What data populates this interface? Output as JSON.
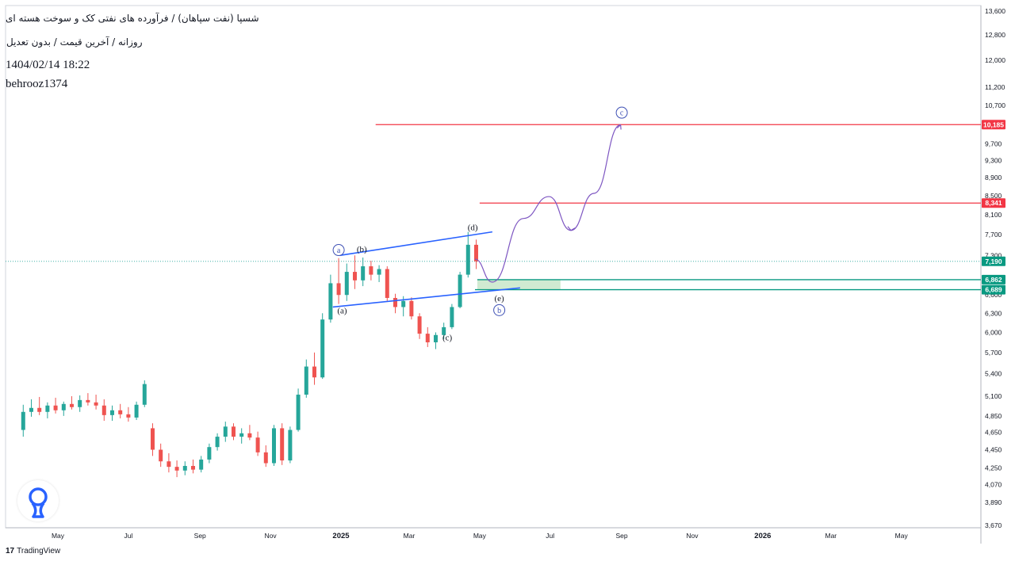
{
  "header": {
    "title": "شسپا (نفت سپاهان) / فرآورده های نفتی کک و سوخت هسته ای",
    "subtitle": "روزانه / آخرین قیمت / بدون تعدیل",
    "date": "1404/02/14 18:22",
    "author": "behrooz1374"
  },
  "footer": {
    "brand": "TradingView",
    "brand_mark": "17"
  },
  "colors": {
    "up": "#26a69a",
    "down": "#ef5350",
    "channel": "#2962ff",
    "resistance": "#f23645",
    "support": "#089981",
    "projection": "#7e57c2",
    "zone": "#c8e6c9",
    "brand_logo": "#2962ff"
  },
  "icons": {
    "brand_logo": "pin-logo-icon",
    "tradingview": "tradingview-logo-icon"
  },
  "chart_data": {
    "type": "candlestick",
    "ylim": [
      3670,
      13600
    ],
    "yscale": "log",
    "price_ticks": [
      "3,670",
      "3,890",
      "4,070",
      "4,250",
      "4,450",
      "4,650",
      "4,850",
      "5,100",
      "5,400",
      "5,700",
      "6,000",
      "6,300",
      "6,600",
      "7,300",
      "7,700",
      "8,100",
      "8,500",
      "8,900",
      "9,300",
      "9,700",
      "10,700",
      "11,200",
      "12,000",
      "12,800",
      "13,600"
    ],
    "time_ticks": [
      "May",
      "Jul",
      "Sep",
      "Nov",
      "2025",
      "Mar",
      "May",
      "Jul",
      "Sep",
      "Nov",
      "2026",
      "Mar",
      "May"
    ],
    "time_ticks_bold": [
      "2025",
      "2026"
    ],
    "last_price": 7190,
    "last_price_label": "7,190",
    "horizontal_levels": [
      {
        "price": 10185,
        "label": "10,185",
        "role": "resistance"
      },
      {
        "price": 8341,
        "label": "8,341",
        "role": "resistance"
      },
      {
        "price": 6862,
        "label": "6,862",
        "role": "support"
      },
      {
        "price": 6689,
        "label": "6,689",
        "role": "support"
      }
    ],
    "wave_labels": [
      {
        "text": "a",
        "circled": true,
        "date": "2024-12-30",
        "price": 7400
      },
      {
        "text": "(b)",
        "circled": false,
        "date": "2025-01-19",
        "price": 7420
      },
      {
        "text": "(a)",
        "circled": false,
        "date": "2025-01-02",
        "price": 6350
      },
      {
        "text": "(c)",
        "circled": false,
        "date": "2025-04-03",
        "price": 5930
      },
      {
        "text": "(d)",
        "circled": false,
        "date": "2025-04-25",
        "price": 7850
      },
      {
        "text": "(e)",
        "circled": false,
        "date": "2025-05-18",
        "price": 6550
      },
      {
        "text": "b",
        "circled": true,
        "date": "2025-05-18",
        "price": 6350
      },
      {
        "text": "c",
        "circled": true,
        "date": "2025-09-01",
        "price": 10500
      }
    ],
    "candles": [
      {
        "date": "2024-04-01",
        "open": 4680,
        "high": 4990,
        "low": 4600,
        "close": 4900
      },
      {
        "date": "2024-04-08",
        "open": 4900,
        "high": 5060,
        "low": 4840,
        "close": 4950
      },
      {
        "date": "2024-04-15",
        "open": 4950,
        "high": 5090,
        "low": 4860,
        "close": 4900
      },
      {
        "date": "2024-04-22",
        "open": 4900,
        "high": 5020,
        "low": 4820,
        "close": 4980
      },
      {
        "date": "2024-04-29",
        "open": 4980,
        "high": 5080,
        "low": 4880,
        "close": 4920
      },
      {
        "date": "2024-05-06",
        "open": 4920,
        "high": 5030,
        "low": 4850,
        "close": 5000
      },
      {
        "date": "2024-05-13",
        "open": 5000,
        "high": 5100,
        "low": 4930,
        "close": 4960
      },
      {
        "date": "2024-05-20",
        "open": 4960,
        "high": 5110,
        "low": 4900,
        "close": 5050
      },
      {
        "date": "2024-05-27",
        "open": 5050,
        "high": 5140,
        "low": 4980,
        "close": 5020
      },
      {
        "date": "2024-06-03",
        "open": 5020,
        "high": 5120,
        "low": 4930,
        "close": 4980
      },
      {
        "date": "2024-06-10",
        "open": 4980,
        "high": 5060,
        "low": 4790,
        "close": 4860
      },
      {
        "date": "2024-06-17",
        "open": 4860,
        "high": 4980,
        "low": 4790,
        "close": 4920
      },
      {
        "date": "2024-06-24",
        "open": 4920,
        "high": 5000,
        "low": 4820,
        "close": 4870
      },
      {
        "date": "2024-07-01",
        "open": 4870,
        "high": 4960,
        "low": 4780,
        "close": 4830
      },
      {
        "date": "2024-07-08",
        "open": 4830,
        "high": 5030,
        "low": 4800,
        "close": 4990
      },
      {
        "date": "2024-07-15",
        "open": 4990,
        "high": 5310,
        "low": 4960,
        "close": 5260
      },
      {
        "date": "2024-07-22",
        "open": 4700,
        "high": 4760,
        "low": 4380,
        "close": 4450
      },
      {
        "date": "2024-07-29",
        "open": 4450,
        "high": 4520,
        "low": 4260,
        "close": 4320
      },
      {
        "date": "2024-08-05",
        "open": 4320,
        "high": 4410,
        "low": 4200,
        "close": 4260
      },
      {
        "date": "2024-08-12",
        "open": 4260,
        "high": 4330,
        "low": 4150,
        "close": 4220
      },
      {
        "date": "2024-08-19",
        "open": 4220,
        "high": 4320,
        "low": 4170,
        "close": 4270
      },
      {
        "date": "2024-08-26",
        "open": 4270,
        "high": 4340,
        "low": 4190,
        "close": 4230
      },
      {
        "date": "2024-09-02",
        "open": 4230,
        "high": 4380,
        "low": 4200,
        "close": 4340
      },
      {
        "date": "2024-09-09",
        "open": 4340,
        "high": 4520,
        "low": 4300,
        "close": 4480
      },
      {
        "date": "2024-09-16",
        "open": 4480,
        "high": 4640,
        "low": 4440,
        "close": 4600
      },
      {
        "date": "2024-09-23",
        "open": 4600,
        "high": 4780,
        "low": 4540,
        "close": 4720
      },
      {
        "date": "2024-09-30",
        "open": 4720,
        "high": 4760,
        "low": 4560,
        "close": 4600
      },
      {
        "date": "2024-10-07",
        "open": 4600,
        "high": 4700,
        "low": 4520,
        "close": 4640
      },
      {
        "date": "2024-10-14",
        "open": 4640,
        "high": 4740,
        "low": 4560,
        "close": 4590
      },
      {
        "date": "2024-10-21",
        "open": 4590,
        "high": 4660,
        "low": 4380,
        "close": 4420
      },
      {
        "date": "2024-10-28",
        "open": 4420,
        "high": 4500,
        "low": 4260,
        "close": 4300
      },
      {
        "date": "2024-11-04",
        "open": 4300,
        "high": 4740,
        "low": 4270,
        "close": 4700
      },
      {
        "date": "2024-11-11",
        "open": 4700,
        "high": 4760,
        "low": 4280,
        "close": 4330
      },
      {
        "date": "2024-11-18",
        "open": 4330,
        "high": 4720,
        "low": 4300,
        "close": 4680
      },
      {
        "date": "2024-11-25",
        "open": 4680,
        "high": 5200,
        "low": 4660,
        "close": 5120
      },
      {
        "date": "2024-12-02",
        "open": 5120,
        "high": 5600,
        "low": 5080,
        "close": 5500
      },
      {
        "date": "2024-12-09",
        "open": 5500,
        "high": 5700,
        "low": 5250,
        "close": 5350
      },
      {
        "date": "2024-12-16",
        "open": 5350,
        "high": 6300,
        "low": 5330,
        "close": 6200
      },
      {
        "date": "2024-12-23",
        "open": 6200,
        "high": 6950,
        "low": 6150,
        "close": 6800
      },
      {
        "date": "2024-12-30",
        "open": 6800,
        "high": 7250,
        "low": 6450,
        "close": 6600
      },
      {
        "date": "2025-01-06",
        "open": 6600,
        "high": 7150,
        "low": 6500,
        "close": 7000
      },
      {
        "date": "2025-01-13",
        "open": 7000,
        "high": 7300,
        "low": 6700,
        "close": 6850
      },
      {
        "date": "2025-01-20",
        "open": 6850,
        "high": 7260,
        "low": 6750,
        "close": 7100
      },
      {
        "date": "2025-01-27",
        "open": 7100,
        "high": 7200,
        "low": 6850,
        "close": 6950
      },
      {
        "date": "2025-02-03",
        "open": 6950,
        "high": 7120,
        "low": 6820,
        "close": 7050
      },
      {
        "date": "2025-02-10",
        "open": 7050,
        "high": 7100,
        "low": 6500,
        "close": 6550
      },
      {
        "date": "2025-02-17",
        "open": 6550,
        "high": 6620,
        "low": 6300,
        "close": 6400
      },
      {
        "date": "2025-02-24",
        "open": 6400,
        "high": 6580,
        "low": 6250,
        "close": 6500
      },
      {
        "date": "2025-03-03",
        "open": 6500,
        "high": 6560,
        "low": 6200,
        "close": 6250
      },
      {
        "date": "2025-03-10",
        "open": 6250,
        "high": 6300,
        "low": 5900,
        "close": 5980
      },
      {
        "date": "2025-03-17",
        "open": 5980,
        "high": 6080,
        "low": 5780,
        "close": 5850
      },
      {
        "date": "2025-03-24",
        "open": 5850,
        "high": 6000,
        "low": 5750,
        "close": 5960
      },
      {
        "date": "2025-03-31",
        "open": 5960,
        "high": 6150,
        "low": 5900,
        "close": 6080
      },
      {
        "date": "2025-04-07",
        "open": 6080,
        "high": 6450,
        "low": 6050,
        "close": 6400
      },
      {
        "date": "2025-04-14",
        "open": 6400,
        "high": 7000,
        "low": 6380,
        "close": 6950
      },
      {
        "date": "2025-04-21",
        "open": 6950,
        "high": 7750,
        "low": 6900,
        "close": 7500
      },
      {
        "date": "2025-04-28",
        "open": 7500,
        "high": 7600,
        "low": 7050,
        "close": 7190
      }
    ],
    "channel_lines": [
      {
        "from": {
          "date": "2024-12-31",
          "price": 7300
        },
        "to": {
          "date": "2025-05-12",
          "price": 7750
        }
      },
      {
        "from": {
          "date": "2024-12-25",
          "price": 6400
        },
        "to": {
          "date": "2025-06-05",
          "price": 6720
        }
      }
    ],
    "support_zone": {
      "from_date": "2025-04-29",
      "to_date": "2025-07-10",
      "low": 6689,
      "high": 6862
    },
    "projection_path": [
      {
        "date": "2025-04-27",
        "price": 7230
      },
      {
        "date": "2025-05-12",
        "price": 6820
      },
      {
        "date": "2025-06-08",
        "price": 8020
      },
      {
        "date": "2025-06-30",
        "price": 8480
      },
      {
        "date": "2025-07-19",
        "price": 7780
      },
      {
        "date": "2025-08-08",
        "price": 8550
      },
      {
        "date": "2025-08-31",
        "price": 10180
      }
    ]
  }
}
